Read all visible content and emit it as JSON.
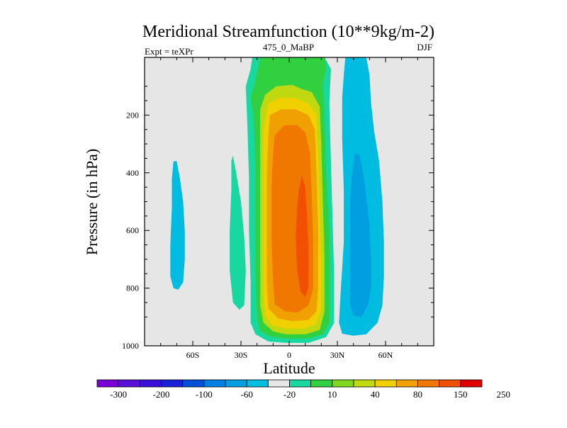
{
  "chart_data": {
    "type": "heatmap",
    "title": "Meridional Streamfunction (10**9kg/m-2)",
    "subtitle_left": "Expt = teXPr",
    "subtitle_center": "475_0_MaBP",
    "subtitle_right": "DJF",
    "xlabel": "Latitude",
    "ylabel": "Pressure (in hPa)",
    "xlim": [
      -90,
      90
    ],
    "ylim": [
      1000,
      0
    ],
    "x_ticks": [
      {
        "value": -60,
        "label": "60S"
      },
      {
        "value": -30,
        "label": "30S"
      },
      {
        "value": 0,
        "label": "0"
      },
      {
        "value": 30,
        "label": "30N"
      },
      {
        "value": 60,
        "label": "60N"
      }
    ],
    "y_ticks": [
      {
        "value": 200,
        "label": "200"
      },
      {
        "value": 400,
        "label": "400"
      },
      {
        "value": 600,
        "label": "600"
      },
      {
        "value": 800,
        "label": "800"
      },
      {
        "value": 1000,
        "label": "1000"
      }
    ],
    "background_color": "#e6e6e6",
    "colorbar": {
      "colors": [
        "#7a00d8",
        "#5a10d8",
        "#3a10d8",
        "#1a20d8",
        "#0050d8",
        "#0080e0",
        "#00a0e0",
        "#00bce0",
        "#e6e6e6",
        "#18d8a0",
        "#30d040",
        "#80d820",
        "#c0d810",
        "#f0d000",
        "#f0a000",
        "#f07800",
        "#f05000",
        "#e00000"
      ],
      "labels": [
        "-300",
        "-200",
        "-100",
        "-60",
        "-20",
        "10",
        "40",
        "80",
        "150",
        "250"
      ]
    },
    "regions": [
      {
        "level": "-20",
        "color": "#00bce0",
        "polygon": [
          [
            -72,
            360
          ],
          [
            -70,
            360
          ],
          [
            -68,
            420
          ],
          [
            -66,
            500
          ],
          [
            -65,
            600
          ],
          [
            -65,
            700
          ],
          [
            -66,
            780
          ],
          [
            -69,
            805
          ],
          [
            -72,
            800
          ],
          [
            -74,
            760
          ],
          [
            -74,
            650
          ],
          [
            -73,
            520
          ],
          [
            -73,
            420
          ]
        ]
      },
      {
        "level": "10",
        "color": "#18d8a0",
        "polygon": [
          [
            -35,
            340
          ],
          [
            -33,
            400
          ],
          [
            -30,
            500
          ],
          [
            -28,
            620
          ],
          [
            -27,
            740
          ],
          [
            -28,
            860
          ],
          [
            -31,
            875
          ],
          [
            -35,
            850
          ],
          [
            -37,
            740
          ],
          [
            -37,
            600
          ],
          [
            -36,
            460
          ],
          [
            -36,
            360
          ]
        ]
      },
      {
        "level": "10",
        "color": "#18d8a0",
        "polygon": [
          [
            -23,
            0
          ],
          [
            -18,
            0
          ],
          [
            -12,
            0
          ],
          [
            8,
            0
          ],
          [
            22,
            0
          ],
          [
            26,
            40
          ],
          [
            25,
            160
          ],
          [
            26,
            360
          ],
          [
            27,
            560
          ],
          [
            28,
            760
          ],
          [
            28,
            920
          ],
          [
            23,
            970
          ],
          [
            12,
            990
          ],
          [
            -2,
            990
          ],
          [
            -13,
            985
          ],
          [
            -21,
            960
          ],
          [
            -24,
            920
          ],
          [
            -24,
            780
          ],
          [
            -25,
            600
          ],
          [
            -25,
            420
          ],
          [
            -26,
            240
          ],
          [
            -27,
            100
          ],
          [
            -24,
            40
          ]
        ]
      },
      {
        "level": "40",
        "color": "#30d040",
        "polygon": [
          [
            -18,
            0
          ],
          [
            8,
            0
          ],
          [
            16,
            0
          ],
          [
            22,
            0
          ],
          [
            23,
            40
          ],
          [
            21,
            90
          ],
          [
            22,
            200
          ],
          [
            23,
            400
          ],
          [
            25,
            600
          ],
          [
            25,
            800
          ],
          [
            25,
            920
          ],
          [
            21,
            960
          ],
          [
            12,
            975
          ],
          [
            -2,
            975
          ],
          [
            -12,
            968
          ],
          [
            -18,
            950
          ],
          [
            -20,
            900
          ],
          [
            -21,
            750
          ],
          [
            -21,
            560
          ],
          [
            -21,
            380
          ],
          [
            -22,
            210
          ],
          [
            -24,
            140
          ],
          [
            -21,
            80
          ]
        ]
      },
      {
        "level": "80",
        "color": "#c0d810",
        "polygon": [
          [
            -15,
            130
          ],
          [
            -8,
            100
          ],
          [
            2,
            95
          ],
          [
            8,
            110
          ],
          [
            14,
            120
          ],
          [
            19,
            170
          ],
          [
            20,
            300
          ],
          [
            21,
            500
          ],
          [
            22,
            700
          ],
          [
            22,
            880
          ],
          [
            19,
            945
          ],
          [
            10,
            960
          ],
          [
            -2,
            960
          ],
          [
            -10,
            950
          ],
          [
            -16,
            920
          ],
          [
            -18,
            860
          ],
          [
            -18,
            700
          ],
          [
            -18,
            500
          ],
          [
            -18,
            300
          ],
          [
            -18,
            180
          ]
        ]
      },
      {
        "level": "150",
        "color": "#f0d000",
        "polygon": [
          [
            -13,
            160
          ],
          [
            -6,
            140
          ],
          [
            4,
            140
          ],
          [
            12,
            160
          ],
          [
            17,
            200
          ],
          [
            18,
            330
          ],
          [
            19,
            530
          ],
          [
            20,
            720
          ],
          [
            20,
            870
          ],
          [
            17,
            925
          ],
          [
            9,
            940
          ],
          [
            -2,
            940
          ],
          [
            -10,
            930
          ],
          [
            -15,
            895
          ],
          [
            -16,
            820
          ],
          [
            -16,
            620
          ],
          [
            -16,
            420
          ],
          [
            -16,
            250
          ]
        ]
      },
      {
        "level": "150",
        "color": "#f0a000",
        "polygon": [
          [
            -12,
            200
          ],
          [
            -5,
            180
          ],
          [
            4,
            180
          ],
          [
            12,
            200
          ],
          [
            16,
            250
          ],
          [
            17,
            400
          ],
          [
            18,
            600
          ],
          [
            18,
            800
          ],
          [
            17,
            880
          ],
          [
            12,
            910
          ],
          [
            2,
            915
          ],
          [
            -7,
            905
          ],
          [
            -13,
            870
          ],
          [
            -14,
            780
          ],
          [
            -14,
            600
          ],
          [
            -14,
            400
          ],
          [
            -13,
            270
          ]
        ]
      },
      {
        "level": "250",
        "color": "#f07800",
        "polygon": [
          [
            -9,
            270
          ],
          [
            -3,
            235
          ],
          [
            5,
            235
          ],
          [
            10,
            260
          ],
          [
            13,
            330
          ],
          [
            14,
            470
          ],
          [
            15,
            650
          ],
          [
            15,
            800
          ],
          [
            12,
            860
          ],
          [
            5,
            885
          ],
          [
            -3,
            880
          ],
          [
            -9,
            855
          ],
          [
            -10,
            780
          ],
          [
            -11,
            620
          ],
          [
            -11,
            450
          ],
          [
            -10,
            330
          ]
        ]
      },
      {
        "level": "250",
        "color": "#f05000",
        "polygon": [
          [
            8,
            410
          ],
          [
            10,
            450
          ],
          [
            11,
            540
          ],
          [
            12,
            660
          ],
          [
            12,
            800
          ],
          [
            10,
            830
          ],
          [
            7,
            810
          ],
          [
            5,
            740
          ],
          [
            4,
            620
          ],
          [
            5,
            520
          ],
          [
            6,
            460
          ]
        ]
      },
      {
        "level": "-20",
        "color": "#00bce0",
        "polygon": [
          [
            35,
            0
          ],
          [
            43,
            0
          ],
          [
            48,
            0
          ],
          [
            50,
            60
          ],
          [
            51,
            160
          ],
          [
            53,
            260
          ],
          [
            56,
            360
          ],
          [
            58,
            500
          ],
          [
            59,
            640
          ],
          [
            59,
            760
          ],
          [
            58,
            860
          ],
          [
            55,
            920
          ],
          [
            48,
            960
          ],
          [
            40,
            965
          ],
          [
            33,
            958
          ],
          [
            31,
            920
          ],
          [
            32,
            820
          ],
          [
            34,
            640
          ],
          [
            34,
            460
          ],
          [
            33,
            280
          ],
          [
            33,
            140
          ],
          [
            34,
            60
          ]
        ]
      },
      {
        "level": "-60",
        "color": "#00a0e0",
        "polygon": [
          [
            41,
            330
          ],
          [
            44,
            340
          ],
          [
            46,
            400
          ],
          [
            48,
            480
          ],
          [
            50,
            580
          ],
          [
            51,
            700
          ],
          [
            51,
            800
          ],
          [
            49,
            860
          ],
          [
            45,
            900
          ],
          [
            40,
            895
          ],
          [
            38,
            860
          ],
          [
            38,
            760
          ],
          [
            38,
            620
          ],
          [
            38,
            500
          ],
          [
            39,
            410
          ]
        ]
      }
    ]
  }
}
